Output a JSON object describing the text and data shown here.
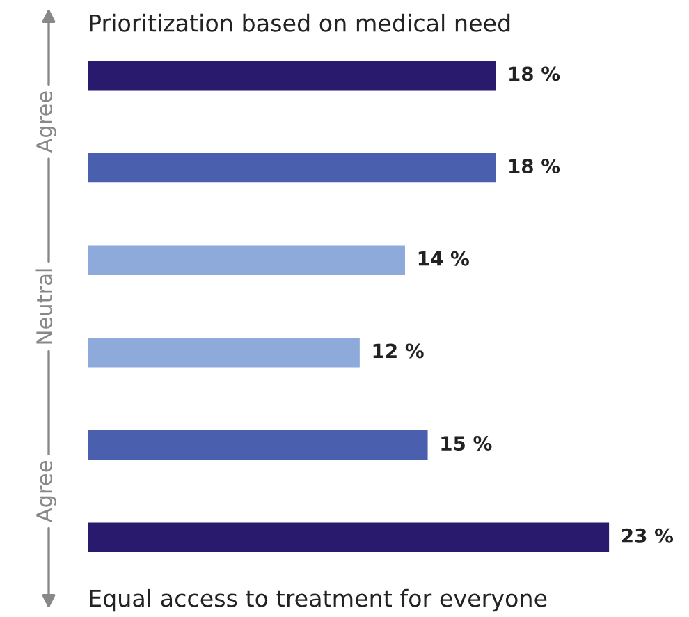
{
  "chart_data": {
    "type": "bar",
    "orientation": "horizontal",
    "title": "Prioritization based on medical need",
    "xlabel": "Equal access to treatment for everyone",
    "categories": [
      null,
      null,
      null,
      null,
      null,
      null
    ],
    "values": [
      18,
      18,
      14,
      12,
      15,
      23
    ],
    "colors": [
      "#2a1a6e",
      "#4a5fae",
      "#8eaadb",
      "#8eaadb",
      "#4a5fae",
      "#2a1a6e"
    ],
    "value_labels": [
      "18 %",
      "18 %",
      "14 %",
      "12 %",
      "15 %",
      "23 %"
    ],
    "annotations": [
      "Agree",
      "Neutral",
      "Agree"
    ],
    "grid": false,
    "legend": false
  }
}
